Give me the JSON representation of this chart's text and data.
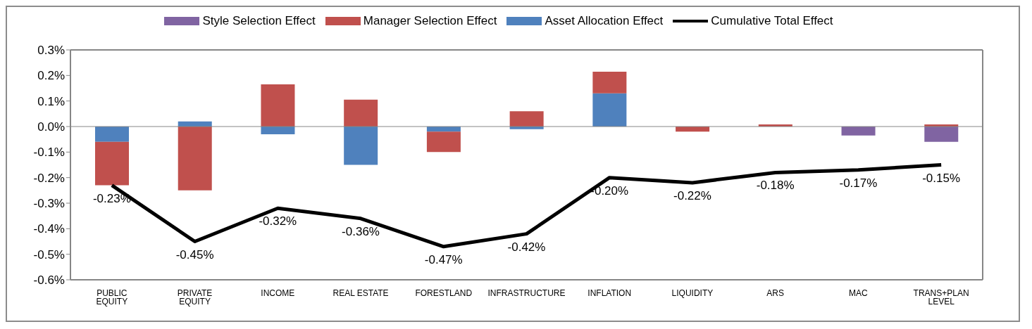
{
  "chart_data": {
    "type": "bar",
    "stacked": true,
    "categories": [
      "PUBLIC EQUITY",
      "PRIVATE EQUITY",
      "INCOME",
      "REAL ESTATE",
      "FORESTLAND",
      "INFRASTRUCTURE",
      "INFLATION",
      "LIQUIDITY",
      "ARS",
      "MAC",
      "TRANS+PLAN LEVEL"
    ],
    "series": [
      {
        "name": "Asset Allocation Effect",
        "color": "#4f81bd",
        "values": [
          -0.06,
          0.02,
          -0.03,
          -0.15,
          -0.02,
          -0.01,
          0.13,
          0,
          0,
          0,
          0
        ]
      },
      {
        "name": "Manager Selection Effect",
        "color": "#c0504d",
        "values": [
          -0.17,
          -0.25,
          0.165,
          0.105,
          -0.08,
          0.06,
          0.085,
          -0.02,
          0.008,
          0,
          0.008
        ]
      },
      {
        "name": "Style Selection Effect",
        "color": "#8064a2",
        "values": [
          0,
          0,
          0,
          0,
          0,
          0,
          0,
          0,
          0,
          -0.035,
          -0.06
        ]
      },
      {
        "name": "Cumulative Total Effect",
        "type": "line",
        "color": "#000000",
        "values": [
          -0.23,
          -0.45,
          -0.32,
          -0.36,
          -0.47,
          -0.42,
          -0.2,
          -0.22,
          -0.18,
          -0.17,
          -0.15
        ],
        "value_labels": [
          "-0.23%",
          "-0.45%",
          "-0.32%",
          "-0.36%",
          "-0.47%",
          "-0.42%",
          "-0.20%",
          "-0.22%",
          "-0.18%",
          "-0.17%",
          "-0.15%"
        ]
      }
    ],
    "ylim": [
      -0.6,
      0.3
    ],
    "yticks": [
      {
        "value": -0.6,
        "label": "-0.6%"
      },
      {
        "value": -0.5,
        "label": "-0.5%"
      },
      {
        "value": -0.4,
        "label": "-0.4%"
      },
      {
        "value": -0.3,
        "label": "-0.3%"
      },
      {
        "value": -0.2,
        "label": "-0.2%"
      },
      {
        "value": -0.1,
        "label": "-0.1%"
      },
      {
        "value": 0,
        "label": "0.0%"
      },
      {
        "value": 0.1,
        "label": "0.1%"
      },
      {
        "value": 0.2,
        "label": "0.2%"
      },
      {
        "value": 0.3,
        "label": "0.3%"
      }
    ],
    "ref_lines": [
      {
        "axis": "y",
        "value": 0,
        "color": "#868686"
      }
    ],
    "grid": false,
    "legend": "top",
    "marker": "none"
  }
}
